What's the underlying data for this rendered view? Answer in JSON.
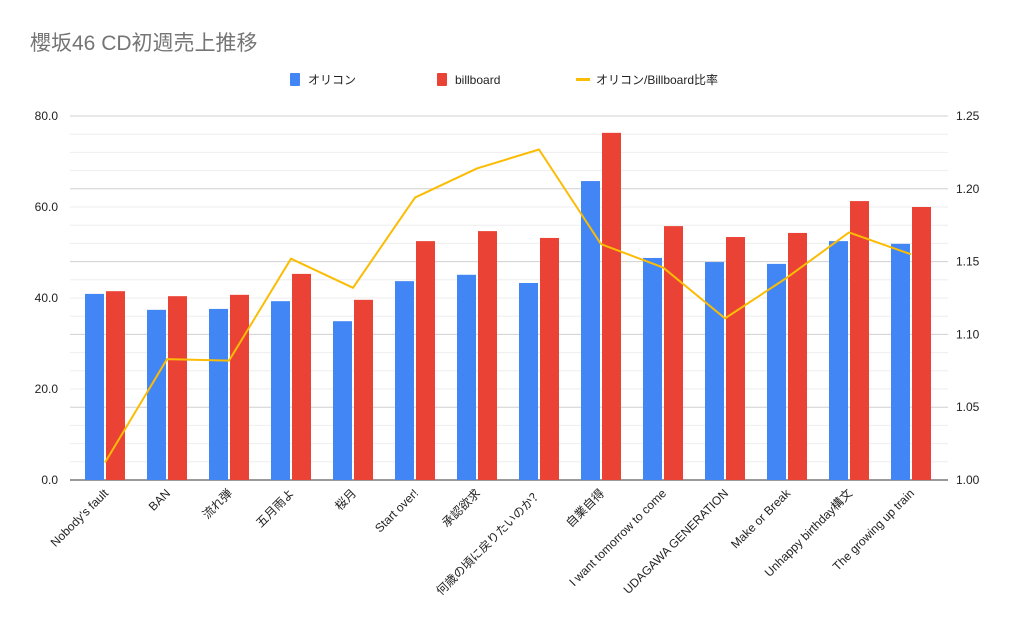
{
  "chart_data": {
    "type": "bar",
    "title": "櫻坂46 CD初週売上推移",
    "categories": [
      "Nobody's fault",
      "BAN",
      "流れ弾",
      "五月雨よ",
      "桜月",
      "Start over!",
      "承認欲求",
      "何歳の頃に戻りたいのか？",
      "自業自得",
      "I want tomorrow to come",
      "UDAGAWA GENERATION",
      "Make or Break",
      "Unhappy birthday構文",
      "The growing up train"
    ],
    "series": [
      {
        "name": "オリコン",
        "type": "bar",
        "axis": "left",
        "color": "#4285F4",
        "values": [
          40.9,
          37.4,
          37.6,
          39.3,
          34.9,
          43.7,
          45.1,
          43.3,
          65.7,
          48.8,
          47.9,
          47.5,
          52.5,
          51.9
        ]
      },
      {
        "name": "billboard",
        "type": "bar",
        "axis": "left",
        "color": "#EA4335",
        "values": [
          41.5,
          40.4,
          40.7,
          45.3,
          39.6,
          52.5,
          54.7,
          53.2,
          76.3,
          55.8,
          53.4,
          54.3,
          61.3,
          60.0
        ]
      },
      {
        "name": "オリコン/Billboard比率",
        "type": "line",
        "axis": "right",
        "color": "#FBBC04",
        "values": [
          1.012,
          1.083,
          1.082,
          1.152,
          1.132,
          1.194,
          1.214,
          1.227,
          1.162,
          1.146,
          1.111,
          1.139,
          1.17,
          1.155
        ]
      }
    ],
    "left_axis": {
      "ylim": [
        0,
        80
      ],
      "ticks": [
        "0.0",
        "20.0",
        "40.0",
        "60.0",
        "80.0"
      ]
    },
    "right_axis": {
      "ylim": [
        1.0,
        1.25
      ],
      "ticks": [
        "1.00",
        "1.05",
        "1.10",
        "1.15",
        "1.20",
        "1.25"
      ]
    },
    "legend": "top",
    "grid": true
  }
}
